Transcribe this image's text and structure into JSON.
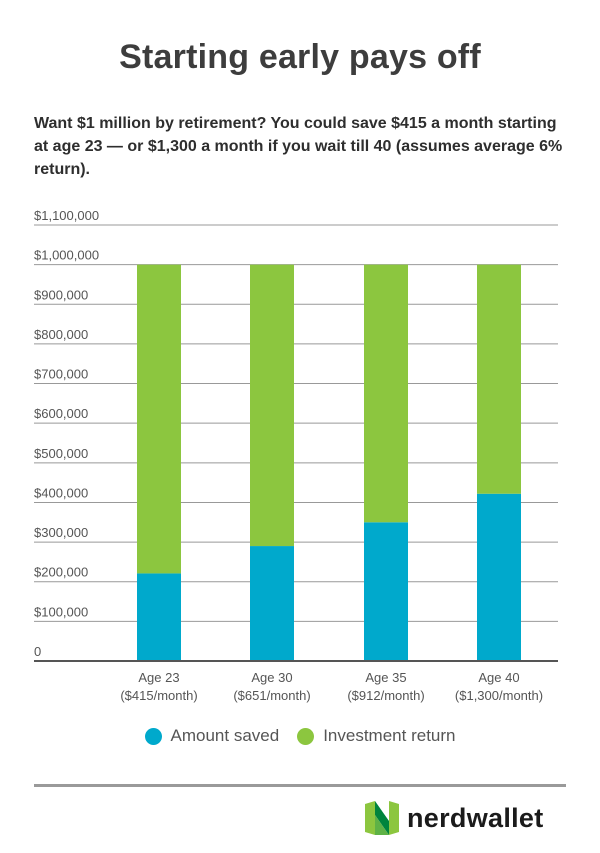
{
  "title": "Starting early pays off",
  "subtitle": "Want $1 million by retirement? You could save $415 a month starting at age 23 — or $1,300 a month if you wait till 40 (assumes average 6% return).",
  "colors": {
    "saved": "#00a9cc",
    "return": "#8cc63f",
    "grid": "#999999",
    "axis": "#555555"
  },
  "chart_data": {
    "type": "bar",
    "stacked": true,
    "categories": [
      [
        "Age 23",
        "($415/month)"
      ],
      [
        "Age 30",
        "($651/month)"
      ],
      [
        "Age 35",
        "($912/month)"
      ],
      [
        "Age 40",
        "($1,300/month)"
      ]
    ],
    "series": [
      {
        "name": "Amount saved",
        "color": "#00a9cc",
        "values": [
          221000,
          290000,
          350000,
          422000
        ]
      },
      {
        "name": "Investment return",
        "color": "#8cc63f",
        "values": [
          779000,
          710000,
          650000,
          578000
        ]
      }
    ],
    "ylim": [
      0,
      1100000
    ],
    "yticks": [
      0,
      100000,
      200000,
      300000,
      400000,
      500000,
      600000,
      700000,
      800000,
      900000,
      1000000,
      1100000
    ],
    "ytick_labels": [
      "0",
      "$100,000",
      "$200,000",
      "$300,000",
      "$400,000",
      "$500,000",
      "$600,000",
      "$700,000",
      "$800,000",
      "$900,000",
      "$1,000,000",
      "$1,100,000"
    ],
    "grid": true,
    "legend_position": "bottom"
  },
  "legend": {
    "items": [
      {
        "label": "Amount saved",
        "color": "#00a9cc"
      },
      {
        "label": "Investment return",
        "color": "#8cc63f"
      }
    ]
  },
  "brand": {
    "name": "nerdwallet"
  }
}
